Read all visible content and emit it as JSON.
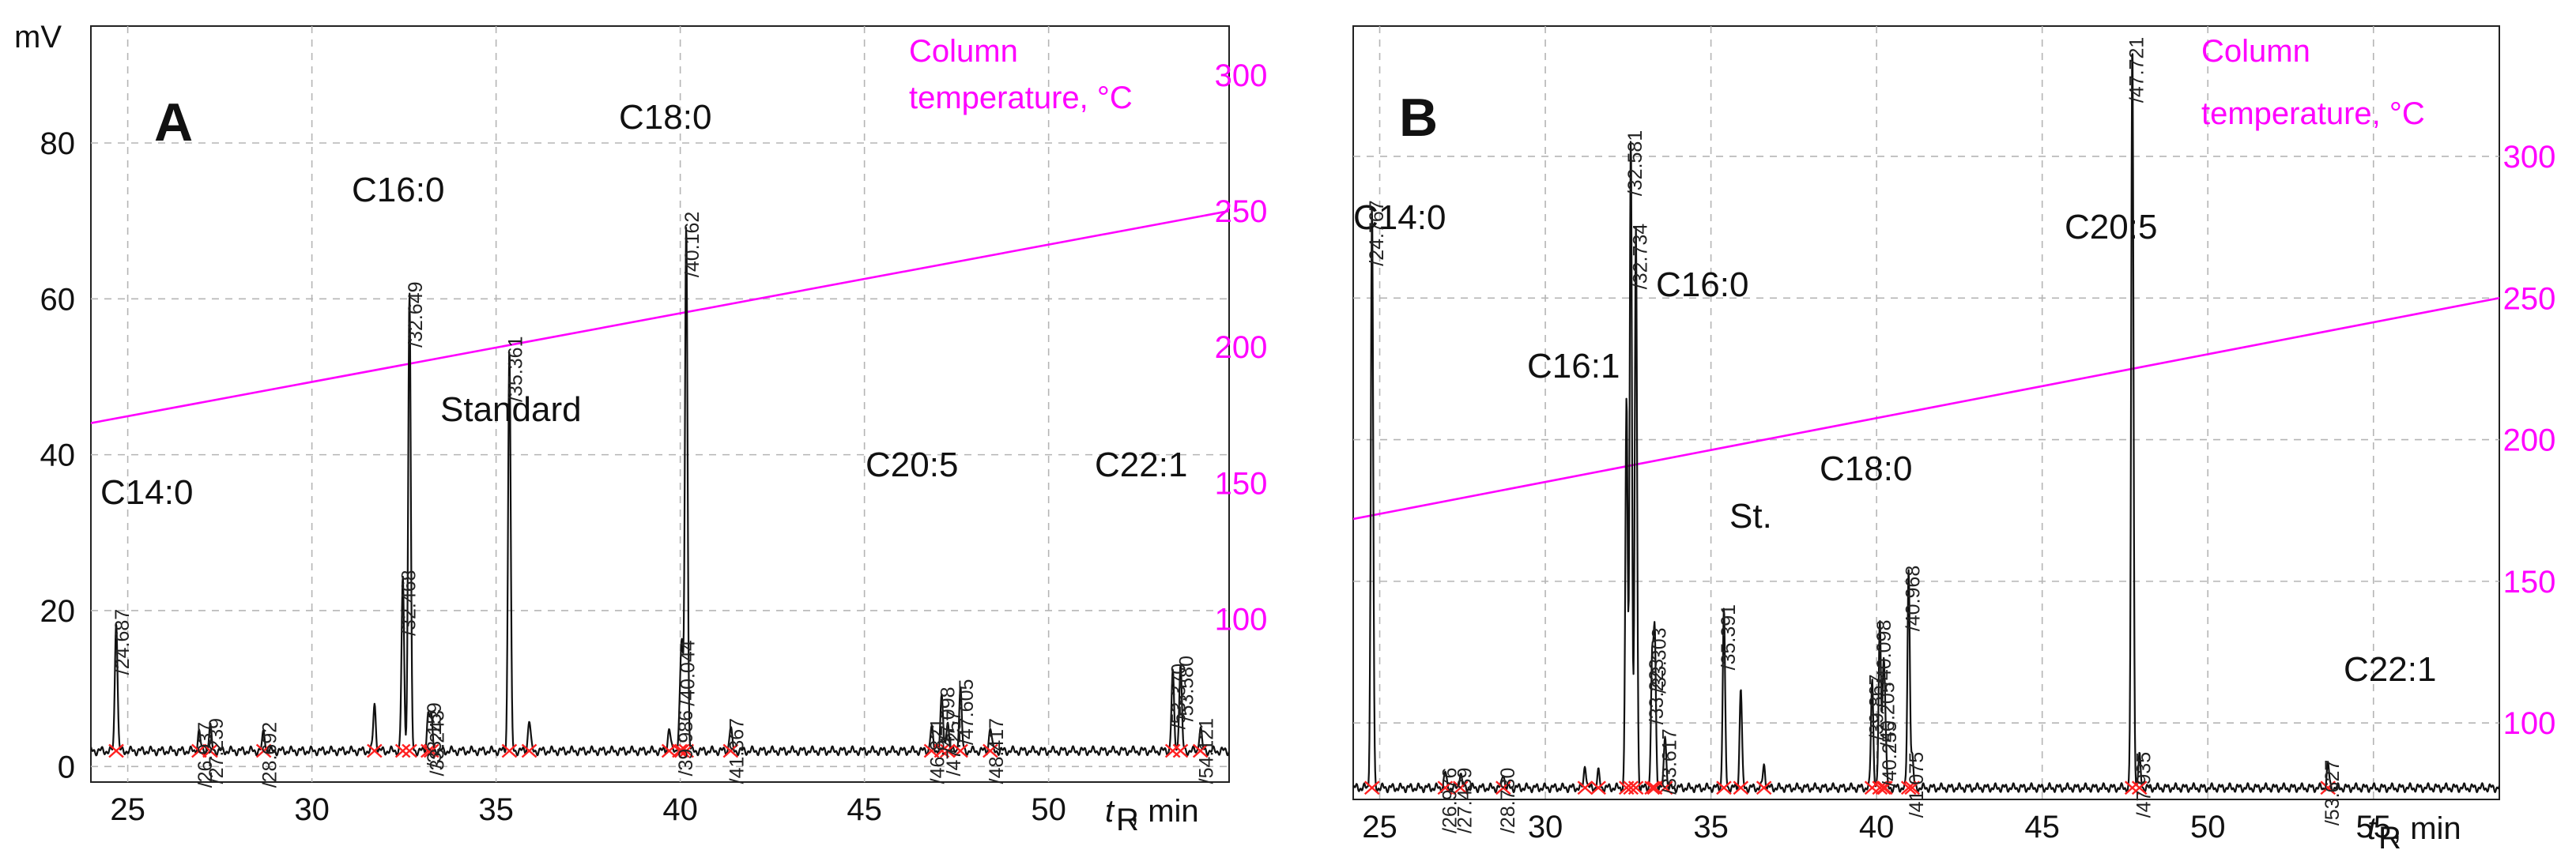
{
  "colors": {
    "trace": "#111111",
    "temperature_line": "#ff00ff",
    "integration_marker": "#ff2020",
    "baseline_segment": "#3040ff",
    "grid": "#b5b5b5"
  },
  "chart_data": [
    {
      "type": "line",
      "panel": "A",
      "ylabel": "mV",
      "xlabel_t": "t",
      "xlabel_sub": "R",
      "xlabel_unit": ",  min",
      "xlim": [
        24,
        54.9
      ],
      "ylim": [
        -2,
        95
      ],
      "x_ticks": [
        "25",
        "30",
        "35",
        "40",
        "45",
        "50"
      ],
      "y_ticks": [
        "0",
        "20",
        "40",
        "60",
        "80"
      ],
      "x_tick_values": [
        25,
        30,
        35,
        40,
        45,
        50
      ],
      "y_tick_values": [
        0,
        20,
        40,
        60,
        80
      ],
      "temp_axis": {
        "title_line1": "Column",
        "title_line2": "temperature, °C",
        "ticks": [
          "100",
          "150",
          "200",
          "250",
          "300"
        ],
        "tick_values": [
          100,
          150,
          200,
          250,
          300
        ],
        "range": [
          40,
          318
        ]
      },
      "temperature_line": {
        "x": [
          24,
          54.9
        ],
        "temp": [
          172,
          250
        ]
      },
      "baseline_mv": 2.0,
      "peaks": [
        {
          "rt": 24.687,
          "height": 17,
          "name": "C14:0",
          "label": "/24.687"
        },
        {
          "rt": 26.937,
          "height": 2.5,
          "label": "/26.937"
        },
        {
          "rt": 27.239,
          "height": 3,
          "label": "/27.239"
        },
        {
          "rt": 28.692,
          "height": 2.5,
          "label": "/28.692"
        },
        {
          "rt": 31.7,
          "height": 6
        },
        {
          "rt": 32.468,
          "height": 22,
          "label": "/32.468"
        },
        {
          "rt": 32.649,
          "height": 59,
          "name": "C16:0",
          "label": "/32.649"
        },
        {
          "rt": 33.159,
          "height": 5,
          "label": "/33.159"
        },
        {
          "rt": 33.243,
          "height": 4,
          "label": "/33.243"
        },
        {
          "rt": 35.361,
          "height": 52,
          "name": "Standard",
          "label": "/35.361"
        },
        {
          "rt": 35.9,
          "height": 4
        },
        {
          "rt": 39.7,
          "height": 3
        },
        {
          "rt": 39.986,
          "height": 4,
          "label": "/39.986"
        },
        {
          "rt": 40.044,
          "height": 13,
          "label": "/40.044"
        },
        {
          "rt": 40.162,
          "height": 68,
          "name": "C18:0",
          "label": "/40.162"
        },
        {
          "rt": 41.367,
          "height": 3,
          "label": "/41.367"
        },
        {
          "rt": 46.821,
          "height": 3,
          "label": "/46.821"
        },
        {
          "rt": 47.257,
          "height": 4,
          "label": "/47.257"
        },
        {
          "rt": 47.098,
          "height": 7,
          "name": "C20:5",
          "label": "/47.098"
        },
        {
          "rt": 47.605,
          "height": 8,
          "label": "/47.605"
        },
        {
          "rt": 48.417,
          "height": 3,
          "label": "/48.417"
        },
        {
          "rt": 53.37,
          "height": 10,
          "name": "C22:1",
          "label": "/53.370"
        },
        {
          "rt": 53.58,
          "height": 11,
          "label": "/53.580"
        },
        {
          "rt": 54.121,
          "height": 3,
          "label": "/54.121"
        }
      ]
    },
    {
      "type": "line",
      "panel": "B",
      "ylabel": "",
      "xlabel_t": "t",
      "xlabel_sub": "R",
      "xlabel_unit": ",  min",
      "xlim": [
        24.2,
        58.8
      ],
      "ylim": [
        -1.5,
        98
      ],
      "x_ticks": [
        "25",
        "30",
        "35",
        "40",
        "45",
        "50",
        "55"
      ],
      "x_tick_values": [
        25,
        30,
        35,
        40,
        45,
        50,
        55
      ],
      "temp_axis": {
        "title_line1": "Column",
        "title_line2": "temperature, °C",
        "ticks": [
          "100",
          "150",
          "200",
          "250",
          "300"
        ],
        "tick_values": [
          100,
          150,
          200,
          250,
          300
        ],
        "range": [
          73,
          346
        ]
      },
      "temperature_line": {
        "x": [
          24.2,
          58.8
        ],
        "temp": [
          172,
          250
        ]
      },
      "baseline_mv": 0,
      "peaks": [
        {
          "rt": 24.767,
          "height": 75,
          "name": "C14:0",
          "label": "/24.767"
        },
        {
          "rt": 26.976,
          "height": 2,
          "label": "/26.976"
        },
        {
          "rt": 27.439,
          "height": 2,
          "label": "/27.439"
        },
        {
          "rt": 28.73,
          "height": 2,
          "label": "/28.730"
        },
        {
          "rt": 31.2,
          "height": 3
        },
        {
          "rt": 31.6,
          "height": 2
        },
        {
          "rt": 32.45,
          "height": 50,
          "name": "C16:1"
        },
        {
          "rt": 32.581,
          "height": 84,
          "label": "/32.581"
        },
        {
          "rt": 32.734,
          "height": 72,
          "name": "C16:0",
          "label": "/32.734"
        },
        {
          "rt": 33.223,
          "height": 16,
          "label": "/33.223"
        },
        {
          "rt": 33.303,
          "height": 20,
          "label": "/33.303"
        },
        {
          "rt": 33.617,
          "height": 7,
          "label": "/33.617"
        },
        {
          "rt": 35.391,
          "height": 23,
          "name": "St.",
          "label": "/35.391"
        },
        {
          "rt": 35.9,
          "height": 13
        },
        {
          "rt": 36.6,
          "height": 3
        },
        {
          "rt": 39.867,
          "height": 14,
          "label": "/39.867"
        },
        {
          "rt": 40.098,
          "height": 21,
          "name": "C18:0",
          "label": "/40.098"
        },
        {
          "rt": 40.205,
          "height": 13,
          "label": "/40.205"
        },
        {
          "rt": 40.255,
          "height": 8,
          "label": "/40.255"
        },
        {
          "rt": 40.968,
          "height": 28,
          "label": "/40.968"
        },
        {
          "rt": 41.075,
          "height": 4,
          "label": "/41.075"
        },
        {
          "rt": 47.721,
          "height": 96,
          "name": "C20:5",
          "label": "/47.721"
        },
        {
          "rt": 47.935,
          "height": 4,
          "label": "/47.935"
        },
        {
          "rt": 53.627,
          "height": 3,
          "name": "C22:1",
          "label": "/53.627"
        }
      ]
    }
  ]
}
